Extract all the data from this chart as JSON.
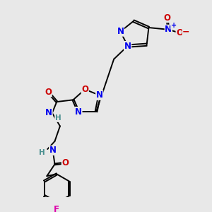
{
  "bg_color": "#e8e8e8",
  "atom_colors": {
    "N": "#0000ee",
    "O": "#cc0000",
    "F": "#dd00aa",
    "C": "#000000",
    "H": "#4a9090"
  },
  "bond_color": "#000000",
  "lw": 1.4,
  "fs": 8.5,
  "fs_small": 7.5
}
